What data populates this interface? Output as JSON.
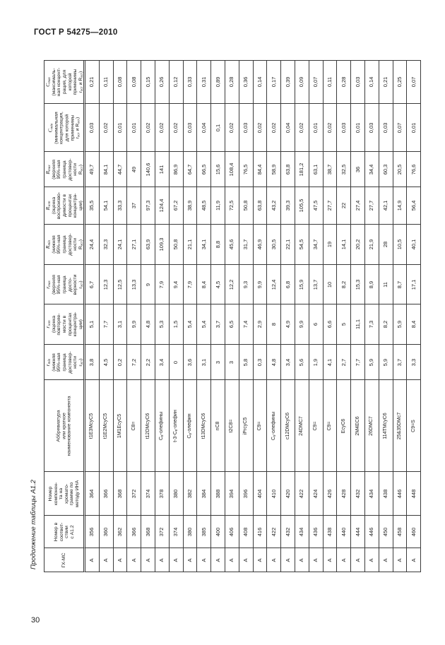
{
  "page": {
    "standard_title": "ГОСТ Р 54275—2010",
    "page_number": "30",
    "table_caption": "Продолжение таблицы А1.2"
  },
  "table": {
    "fields": [
      {
        "key": "C_max",
        "sym": "С",
        "sub": "max",
        "desc": "(максималь-\nная концент-\nрация, для\nкоторой\nприменимы\nr~эст~ и R~эст~)"
      },
      {
        "key": "C_min",
        "sym": "С",
        "sub": "min",
        "desc": "(минимальная\nконцентрация,\nдля которой\nприменимы\nr~эст~ и R~эст~)"
      },
      {
        "key": "R_max",
        "sym": "R",
        "sub": "max",
        "desc": "(верхняя\n95%-ная\nграница\nдостовер-\nности\nR~эст~)"
      },
      {
        "key": "R_est",
        "sym": "R",
        "sub": "эст",
        "desc": "(оценка\nвоспроизво-\nдимости в\nпроцентах\nконцентра-\nции)"
      },
      {
        "key": "R_min",
        "sym": "R",
        "sub": "min",
        "desc": "(нижняя\n95%-ная\nграница\nдостовер-\nности\nR~эст~)"
      },
      {
        "key": "r_max",
        "sym": "r",
        "sub": "max",
        "desc": "(верхняя\n95%-ная\nграница\nдосто-\nверности\nr~эст~)"
      },
      {
        "key": "r_est",
        "sym": "r",
        "sub": "эст",
        "desc": "(оценка\nповторяе-\nмости в\nпроцентах\nконцентра-\nции)"
      },
      {
        "key": "r_min",
        "sym": "r",
        "sub": "min",
        "desc": "(нижняя\n95%-ная\nграница\nдостовер-\nности\nr~эст~)"
      },
      {
        "key": "abbr",
        "sym": "",
        "sub": "",
        "desc": "Аббревиатура\nили краткое\nнаименование компонента"
      },
      {
        "key": "num_ina",
        "sym": "",
        "sub": "",
        "desc": "Номер\nкомпонен-\nта на\nхромато-\nграмме по\nметоду ИНА"
      },
      {
        "key": "num_a12",
        "sym": "",
        "sub": "",
        "desc": "Номер в\nсоответ-\nствии\nс А1.2"
      },
      {
        "key": "gc_ms",
        "sym": "",
        "sub": "",
        "desc": "ГХ-МС"
      }
    ],
    "records": [
      {
        "gc_ms": "А",
        "num_a12": "356",
        "num_ina": "364",
        "abbr": "t1E3McyC5",
        "r_min": "3,8",
        "r_est": "5,1",
        "r_max": "6,7",
        "R_min": "24,4",
        "R_est": "35,5",
        "R_max": "49,7",
        "C_min": "0,03",
        "C_max": "0,21"
      },
      {
        "gc_ms": "А",
        "num_a12": "360",
        "num_ina": "366",
        "abbr": "t1E2McyC5",
        "r_min": "4,5",
        "r_est": "7,7",
        "r_max": "12,3",
        "R_min": "32,3",
        "R_est": "54,1",
        "R_max": "84,1",
        "C_min": "0,02",
        "C_max": "0,11"
      },
      {
        "gc_ms": "А",
        "num_a12": "362",
        "num_ina": "368",
        "abbr": "1M1EcyC5",
        "r_min": "0,2",
        "r_est": "3,1",
        "r_max": "12,5",
        "R_min": "24,1",
        "R_est": "33,3",
        "R_max": "44,7",
        "C_min": "0,01",
        "C_max": "0,08"
      },
      {
        "gc_ms": "А",
        "num_a12": "366",
        "num_ina": "372",
        "abbr": "С8=",
        "r_min": "7,2",
        "r_est": "9,9",
        "r_max": "13,3",
        "R_min": "27,1",
        "R_est": "37",
        "R_max": "49",
        "C_min": "0,01",
        "C_max": "0,08"
      },
      {
        "gc_ms": "А",
        "num_a12": "368",
        "num_ina": "374",
        "abbr": "t12DMcyC6",
        "r_min": "2,2",
        "r_est": "4,8",
        "r_max": "9",
        "R_min": "63,9",
        "R_est": "97,3",
        "R_max": "140,6",
        "C_min": "0,02",
        "C_max": "0,15"
      },
      {
        "gc_ms": "А",
        "num_a12": "372",
        "num_ina": "378",
        "abbr": "С~8~-олефины",
        "r_min": "3,4",
        "r_est": "5,3",
        "r_max": "7,9",
        "R_min": "109,3",
        "R_est": "124,4",
        "R_max": "141",
        "C_min": "0,02",
        "C_max": "0,26"
      },
      {
        "gc_ms": "А",
        "num_a12": "374",
        "num_ina": "380",
        "abbr": "t-3-С~8~-олефин",
        "r_min": "0",
        "r_est": "1,5",
        "r_max": "9,4",
        "R_min": "50,8",
        "R_est": "67,2",
        "R_max": "86,9",
        "C_min": "0,02",
        "C_max": "0,12"
      },
      {
        "gc_ms": "А",
        "num_a12": "380",
        "num_ina": "382",
        "abbr": "С~8~-олефин",
        "r_min": "3,6",
        "r_est": "5,4",
        "r_max": "7,9",
        "R_min": "21,1",
        "R_est": "38,9",
        "R_max": "64,7",
        "C_min": "0,03",
        "C_max": "0,33"
      },
      {
        "gc_ms": "А",
        "num_a12": "385",
        "num_ina": "384",
        "abbr": "t13DMcyC6",
        "r_min": "3,1",
        "r_est": "5,4",
        "r_max": "8,4",
        "R_min": "34,1",
        "R_est": "48,5",
        "R_max": "66,5",
        "C_min": "0,04",
        "C_max": "0,31"
      },
      {
        "gc_ms": "А",
        "num_a12": "400",
        "num_ina": "388",
        "abbr": "nC8",
        "r_min": "3",
        "r_est": "3,7",
        "r_max": "4,5",
        "R_min": "8,8",
        "R_est": "11,9",
        "R_max": "15,6",
        "C_min": "0,1",
        "C_max": "0,89"
      },
      {
        "gc_ms": "А",
        "num_a12": "406",
        "num_ina": "394",
        "abbr": "t2C8=",
        "r_min": "3",
        "r_est": "6,5",
        "r_max": "12,2",
        "R_min": "45,6",
        "R_est": "72,5",
        "R_max": "108,4",
        "C_min": "0,02",
        "C_max": "0,28"
      },
      {
        "gc_ms": "А",
        "num_a12": "408",
        "num_ina": "396",
        "abbr": "iPrcyC5",
        "r_min": "5,8",
        "r_est": "7,4",
        "r_max": "9,3",
        "R_min": "31,7",
        "R_est": "50,8",
        "R_max": "76,5",
        "C_min": "0,03",
        "C_max": "0,36"
      },
      {
        "gc_ms": "А",
        "num_a12": "416",
        "num_ina": "404",
        "abbr": "С9=",
        "r_min": "0,3",
        "r_est": "2,9",
        "r_max": "9,9",
        "R_min": "46,9",
        "R_est": "63,8",
        "R_max": "84,4",
        "C_min": "0,02",
        "C_max": "0,14"
      },
      {
        "gc_ms": "А",
        "num_a12": "422",
        "num_ina": "410",
        "abbr": "С~9~-олефины",
        "r_min": "4,8",
        "r_est": "8",
        "r_max": "12,4",
        "R_min": "30,5",
        "R_est": "43,2",
        "R_max": "58,9",
        "C_min": "0,02",
        "C_max": "0,17"
      },
      {
        "gc_ms": "А",
        "num_a12": "432",
        "num_ina": "420",
        "abbr": "c12DMcyC6",
        "r_min": "3,4",
        "r_est": "4,9",
        "r_max": "6,8",
        "R_min": "22,1",
        "R_est": "39,3",
        "R_max": "63,8",
        "C_min": "0,04",
        "C_max": "0,39"
      },
      {
        "gc_ms": "А",
        "num_a12": "434",
        "num_ina": "422",
        "abbr": "24DMC7",
        "r_min": "5,6",
        "r_est": "9,9",
        "r_max": "15,9",
        "R_min": "54,5",
        "R_est": "105,5",
        "R_max": "181,2",
        "C_min": "0,02",
        "C_max": "0,09"
      },
      {
        "gc_ms": "А",
        "num_a12": "436",
        "num_ina": "424",
        "abbr": "С9=",
        "r_min": "1,9",
        "r_est": "6",
        "r_max": "13,7",
        "R_min": "34,7",
        "R_est": "47,5",
        "R_max": "63,1",
        "C_min": "0,01",
        "C_max": "0,07"
      },
      {
        "gc_ms": "А",
        "num_a12": "438",
        "num_ina": "426",
        "abbr": "С9=",
        "r_min": "4,1",
        "r_est": "6,6",
        "r_max": "10",
        "R_min": "19",
        "R_est": "27,7",
        "R_max": "38,7",
        "C_min": "0,02",
        "C_max": "0,11"
      },
      {
        "gc_ms": "А",
        "num_a12": "440",
        "num_ina": "428",
        "abbr": "EcyC6",
        "r_min": "2,7",
        "r_est": "5",
        "r_max": "8,2",
        "R_min": "14,1",
        "R_est": "22",
        "R_max": "32,5",
        "C_min": "0,03",
        "C_max": "0,28"
      },
      {
        "gc_ms": "А",
        "num_a12": "444",
        "num_ina": "432",
        "abbr": "2M4EC6",
        "r_min": "7,7",
        "r_est": "11,1",
        "r_max": "15,3",
        "R_min": "20,2",
        "R_est": "27,4",
        "R_max": "36",
        "C_min": "0,01",
        "C_max": "0,03"
      },
      {
        "gc_ms": "А",
        "num_a12": "446",
        "num_ina": "434",
        "abbr": "26DMC7",
        "r_min": "5,9",
        "r_est": "7,3",
        "r_max": "8,9",
        "R_min": "21,9",
        "R_est": "27,7",
        "R_max": "34,4",
        "C_min": "0,03",
        "C_max": "0,14"
      },
      {
        "gc_ms": "А",
        "num_a12": "450",
        "num_ina": "438",
        "abbr": "114TMcyC6",
        "r_min": "5,9",
        "r_est": "8,2",
        "r_max": "11",
        "R_min": "28",
        "R_est": "42,1",
        "R_max": "60,3",
        "C_min": "0,03",
        "C_max": "0,21"
      },
      {
        "gc_ms": "А",
        "num_a12": "458",
        "num_ina": "446",
        "abbr": "25&35DMc7",
        "r_min": "3,7",
        "r_est": "5,9",
        "r_max": "8,7",
        "R_min": "10,5",
        "R_est": "14,9",
        "R_max": "20,5",
        "C_min": "0,07",
        "C_max": "0,25"
      },
      {
        "gc_ms": "А",
        "num_a12": "460",
        "num_ina": "448",
        "abbr": "С9=S",
        "r_min": "3,3",
        "r_est": "8,4",
        "r_max": "17,1",
        "R_min": "40,1",
        "R_est": "56,4",
        "R_max": "76,6",
        "C_min": "0,01",
        "C_max": "0,07"
      }
    ]
  }
}
